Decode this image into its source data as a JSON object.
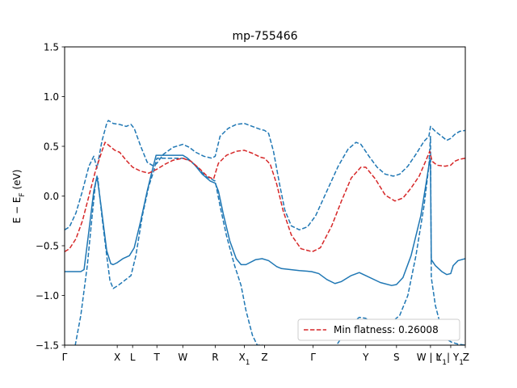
{
  "chart_data": {
    "type": "line",
    "title": "mp-755466",
    "xlabel": "",
    "ylabel": "E − E_F (eV)",
    "ylabel_main": "E − E",
    "ylabel_sub": "F",
    "ylabel_unit": " (eV)",
    "xlim": [
      0,
      495
    ],
    "ylim": [
      -1.5,
      1.5
    ],
    "yticks": [
      {
        "value": -1.5,
        "label": "−1.5"
      },
      {
        "value": -1.0,
        "label": "−1.0"
      },
      {
        "value": -0.5,
        "label": "−0.5"
      },
      {
        "value": 0.0,
        "label": "0.0"
      },
      {
        "value": 0.5,
        "label": "0.5"
      },
      {
        "value": 1.0,
        "label": "1.0"
      },
      {
        "value": 1.5,
        "label": "1.5"
      }
    ],
    "kpoints": [
      {
        "x": 0,
        "label": "Γ",
        "sub": ""
      },
      {
        "x": 65,
        "label": "X",
        "sub": ""
      },
      {
        "x": 84,
        "label": "L",
        "sub": ""
      },
      {
        "x": 114,
        "label": "T",
        "sub": ""
      },
      {
        "x": 146,
        "label": "W",
        "sub": ""
      },
      {
        "x": 186,
        "label": "R",
        "sub": ""
      },
      {
        "x": 222,
        "label": "X",
        "sub": "1"
      },
      {
        "x": 247,
        "label": "Z",
        "sub": ""
      },
      {
        "x": 307,
        "label": "Γ",
        "sub": ""
      },
      {
        "x": 372,
        "label": "Y",
        "sub": ""
      },
      {
        "x": 410,
        "label": "S",
        "sub": ""
      },
      {
        "x": 452,
        "label": "W | L",
        "sub": "",
        "anchor": "end"
      },
      {
        "x": 477,
        "label": "Y",
        "sub": "1",
        "extra": "| Y",
        "extra_sub": "1",
        "anchor": "middle-wide"
      },
      {
        "x": 495,
        "label": "Z",
        "sub": "",
        "anchor": "end"
      }
    ],
    "series": [
      {
        "name": "band-solid",
        "color": "#1f77b4",
        "dash": "solid",
        "points": [
          [
            0,
            -0.76
          ],
          [
            20,
            -0.76
          ],
          [
            24,
            -0.74
          ],
          [
            30,
            -0.35
          ],
          [
            36,
            0.05
          ],
          [
            40,
            0.2
          ],
          [
            45,
            -0.1
          ],
          [
            52,
            -0.55
          ],
          [
            57,
            -0.68
          ],
          [
            60,
            -0.69
          ],
          [
            65,
            -0.67
          ],
          [
            72,
            -0.63
          ],
          [
            80,
            -0.6
          ],
          [
            86,
            -0.52
          ],
          [
            94,
            -0.25
          ],
          [
            102,
            0.05
          ],
          [
            108,
            0.25
          ],
          [
            113,
            0.41
          ],
          [
            118,
            0.41
          ],
          [
            146,
            0.41
          ],
          [
            152,
            0.38
          ],
          [
            160,
            0.32
          ],
          [
            170,
            0.22
          ],
          [
            180,
            0.15
          ],
          [
            186,
            0.13
          ],
          [
            190,
            0.05
          ],
          [
            196,
            -0.18
          ],
          [
            204,
            -0.45
          ],
          [
            212,
            -0.63
          ],
          [
            218,
            -0.69
          ],
          [
            224,
            -0.69
          ],
          [
            236,
            -0.64
          ],
          [
            244,
            -0.63
          ],
          [
            252,
            -0.65
          ],
          [
            262,
            -0.71
          ],
          [
            268,
            -0.73
          ],
          [
            290,
            -0.75
          ],
          [
            305,
            -0.76
          ],
          [
            314,
            -0.78
          ],
          [
            324,
            -0.84
          ],
          [
            334,
            -0.88
          ],
          [
            342,
            -0.86
          ],
          [
            354,
            -0.8
          ],
          [
            364,
            -0.77
          ],
          [
            372,
            -0.8
          ],
          [
            390,
            -0.87
          ],
          [
            404,
            -0.9
          ],
          [
            410,
            -0.89
          ],
          [
            418,
            -0.82
          ],
          [
            428,
            -0.6
          ],
          [
            440,
            -0.2
          ],
          [
            448,
            0.2
          ],
          [
            451,
            0.36
          ],
          [
            452,
            0.3
          ],
          [
            453,
            -0.64
          ],
          [
            458,
            -0.7
          ],
          [
            466,
            -0.76
          ],
          [
            472,
            -0.79
          ],
          [
            477,
            -0.78
          ],
          [
            480,
            -0.7
          ],
          [
            486,
            -0.65
          ],
          [
            495,
            -0.63
          ]
        ]
      },
      {
        "name": "band-dashed-upper",
        "color": "#1f77b4",
        "dash": "dashed",
        "points": [
          [
            0,
            -0.34
          ],
          [
            6,
            -0.31
          ],
          [
            14,
            -0.17
          ],
          [
            22,
            0.05
          ],
          [
            30,
            0.3
          ],
          [
            36,
            0.4
          ],
          [
            40,
            0.28
          ],
          [
            46,
            0.55
          ],
          [
            52,
            0.73
          ],
          [
            54,
            0.76
          ],
          [
            60,
            0.73
          ],
          [
            68,
            0.72
          ],
          [
            76,
            0.7
          ],
          [
            82,
            0.72
          ],
          [
            86,
            0.68
          ],
          [
            94,
            0.5
          ],
          [
            102,
            0.34
          ],
          [
            110,
            0.3
          ],
          [
            114,
            0.33
          ],
          [
            122,
            0.42
          ],
          [
            134,
            0.49
          ],
          [
            146,
            0.52
          ],
          [
            154,
            0.49
          ],
          [
            162,
            0.44
          ],
          [
            172,
            0.4
          ],
          [
            182,
            0.38
          ],
          [
            186,
            0.4
          ],
          [
            192,
            0.6
          ],
          [
            202,
            0.68
          ],
          [
            212,
            0.72
          ],
          [
            222,
            0.73
          ],
          [
            232,
            0.7
          ],
          [
            242,
            0.67
          ],
          [
            247,
            0.66
          ],
          [
            252,
            0.63
          ],
          [
            258,
            0.45
          ],
          [
            266,
            0.1
          ],
          [
            272,
            -0.14
          ],
          [
            280,
            -0.3
          ],
          [
            290,
            -0.34
          ],
          [
            300,
            -0.31
          ],
          [
            310,
            -0.2
          ],
          [
            324,
            0.05
          ],
          [
            338,
            0.3
          ],
          [
            350,
            0.47
          ],
          [
            360,
            0.54
          ],
          [
            366,
            0.52
          ],
          [
            376,
            0.4
          ],
          [
            386,
            0.29
          ],
          [
            396,
            0.22
          ],
          [
            406,
            0.2
          ],
          [
            414,
            0.22
          ],
          [
            424,
            0.3
          ],
          [
            434,
            0.42
          ],
          [
            444,
            0.55
          ],
          [
            450,
            0.6
          ],
          [
            452,
            0.7
          ],
          [
            458,
            0.65
          ],
          [
            466,
            0.6
          ],
          [
            472,
            0.56
          ],
          [
            477,
            0.58
          ],
          [
            482,
            0.62
          ],
          [
            488,
            0.65
          ],
          [
            495,
            0.66
          ]
        ]
      },
      {
        "name": "band-dashed-lower",
        "color": "#1f77b4",
        "dash": "dashed",
        "points": [
          [
            0,
            -1.72
          ],
          [
            6,
            -1.7
          ],
          [
            12,
            -1.55
          ],
          [
            20,
            -1.2
          ],
          [
            28,
            -0.7
          ],
          [
            34,
            -0.2
          ],
          [
            38,
            0.12
          ],
          [
            41,
            0.18
          ],
          [
            46,
            -0.2
          ],
          [
            52,
            -0.6
          ],
          [
            56,
            -0.85
          ],
          [
            60,
            -0.93
          ],
          [
            66,
            -0.9
          ],
          [
            74,
            -0.85
          ],
          [
            82,
            -0.8
          ],
          [
            88,
            -0.6
          ],
          [
            96,
            -0.2
          ],
          [
            104,
            0.1
          ],
          [
            110,
            0.25
          ],
          [
            114,
            0.38
          ],
          [
            120,
            0.38
          ],
          [
            130,
            0.38
          ],
          [
            146,
            0.38
          ],
          [
            154,
            0.36
          ],
          [
            164,
            0.29
          ],
          [
            174,
            0.2
          ],
          [
            186,
            0.15
          ],
          [
            192,
            -0.1
          ],
          [
            200,
            -0.4
          ],
          [
            210,
            -0.7
          ],
          [
            218,
            -0.9
          ],
          [
            224,
            -1.15
          ],
          [
            232,
            -1.4
          ],
          [
            238,
            -1.5
          ],
          [
            244,
            -1.5
          ],
          [
            260,
            -1.53
          ],
          [
            280,
            -1.6
          ],
          [
            300,
            -1.65
          ],
          [
            320,
            -1.6
          ],
          [
            336,
            -1.5
          ],
          [
            352,
            -1.3
          ],
          [
            364,
            -1.22
          ],
          [
            372,
            -1.23
          ],
          [
            390,
            -1.34
          ],
          [
            404,
            -1.27
          ],
          [
            414,
            -1.2
          ],
          [
            424,
            -1.0
          ],
          [
            434,
            -0.6
          ],
          [
            444,
            -0.1
          ],
          [
            450,
            0.3
          ],
          [
            452,
            0.6
          ],
          [
            453,
            -0.82
          ],
          [
            458,
            -1.1
          ],
          [
            466,
            -1.35
          ],
          [
            474,
            -1.45
          ],
          [
            478,
            -1.47
          ],
          [
            486,
            -1.49
          ],
          [
            495,
            -1.5
          ]
        ]
      },
      {
        "name": "band-red-dashed",
        "color": "#d62728",
        "dash": "dashed",
        "points": [
          [
            0,
            -0.56
          ],
          [
            6,
            -0.53
          ],
          [
            14,
            -0.43
          ],
          [
            22,
            -0.25
          ],
          [
            30,
            0.0
          ],
          [
            38,
            0.25
          ],
          [
            46,
            0.45
          ],
          [
            50,
            0.54
          ],
          [
            56,
            0.5
          ],
          [
            62,
            0.46
          ],
          [
            68,
            0.44
          ],
          [
            76,
            0.36
          ],
          [
            84,
            0.29
          ],
          [
            94,
            0.25
          ],
          [
            104,
            0.23
          ],
          [
            114,
            0.27
          ],
          [
            124,
            0.32
          ],
          [
            134,
            0.36
          ],
          [
            146,
            0.38
          ],
          [
            156,
            0.35
          ],
          [
            166,
            0.28
          ],
          [
            176,
            0.2
          ],
          [
            184,
            0.17
          ],
          [
            190,
            0.33
          ],
          [
            200,
            0.41
          ],
          [
            212,
            0.45
          ],
          [
            222,
            0.46
          ],
          [
            232,
            0.43
          ],
          [
            242,
            0.39
          ],
          [
            247,
            0.38
          ],
          [
            254,
            0.32
          ],
          [
            262,
            0.12
          ],
          [
            270,
            -0.15
          ],
          [
            280,
            -0.39
          ],
          [
            292,
            -0.53
          ],
          [
            306,
            -0.56
          ],
          [
            316,
            -0.52
          ],
          [
            330,
            -0.3
          ],
          [
            342,
            -0.05
          ],
          [
            354,
            0.18
          ],
          [
            366,
            0.29
          ],
          [
            372,
            0.29
          ],
          [
            384,
            0.17
          ],
          [
            396,
            0.01
          ],
          [
            408,
            -0.05
          ],
          [
            418,
            -0.02
          ],
          [
            428,
            0.08
          ],
          [
            438,
            0.2
          ],
          [
            446,
            0.35
          ],
          [
            451,
            0.45
          ],
          [
            454,
            0.35
          ],
          [
            460,
            0.31
          ],
          [
            470,
            0.3
          ],
          [
            477,
            0.31
          ],
          [
            482,
            0.35
          ],
          [
            488,
            0.37
          ],
          [
            495,
            0.38
          ]
        ]
      }
    ],
    "legend": {
      "location": "lower right",
      "label": "Min flatness: 0.26008",
      "color": "#d62728",
      "dash": "dashed"
    }
  }
}
